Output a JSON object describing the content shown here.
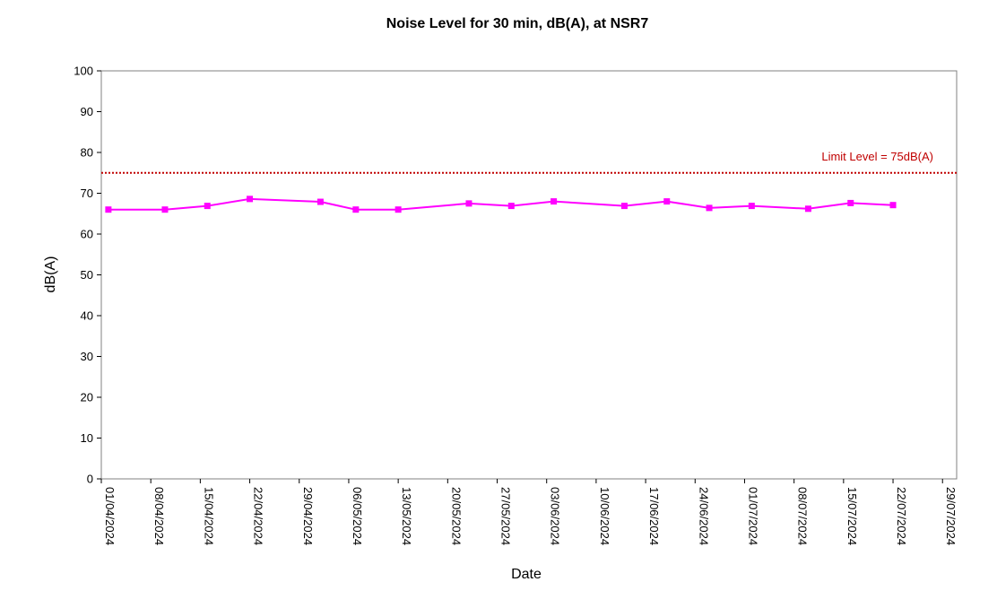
{
  "chart_data": {
    "type": "line",
    "title": "Noise Level for 30 min, dB(A), at NSR7",
    "xlabel": "Date",
    "ylabel": "dB(A)",
    "ylim": [
      0,
      100
    ],
    "y_ticks": [
      0,
      10,
      20,
      30,
      40,
      50,
      60,
      70,
      80,
      90,
      100
    ],
    "x_tick_labels": [
      "01/04/2024",
      "08/04/2024",
      "15/04/2024",
      "22/04/2024",
      "29/04/2024",
      "06/05/2024",
      "13/05/2024",
      "20/05/2024",
      "27/05/2024",
      "03/06/2024",
      "10/06/2024",
      "17/06/2024",
      "24/06/2024",
      "01/07/2024",
      "08/07/2024",
      "15/07/2024",
      "22/07/2024",
      "29/07/2024"
    ],
    "xlim": [
      "2024-04-01",
      "2024-07-31"
    ],
    "grid": false,
    "series": [
      {
        "color": "#ff00ff",
        "x": [
          "2024-04-02",
          "2024-04-10",
          "2024-04-16",
          "2024-04-22",
          "2024-05-02",
          "2024-05-07",
          "2024-05-13",
          "2024-05-23",
          "2024-05-29",
          "2024-06-04",
          "2024-06-14",
          "2024-06-20",
          "2024-06-26",
          "2024-07-02",
          "2024-07-10",
          "2024-07-16",
          "2024-07-22"
        ],
        "values": [
          66.0,
          66.0,
          66.9,
          68.6,
          67.9,
          66.0,
          66.0,
          67.5,
          66.9,
          68.0,
          66.9,
          68.0,
          66.4,
          66.9,
          66.2,
          67.6,
          67.1
        ]
      }
    ],
    "limit": {
      "value": 75,
      "label": "Limit Level = 75dB(A)",
      "color": "#c00000"
    }
  }
}
